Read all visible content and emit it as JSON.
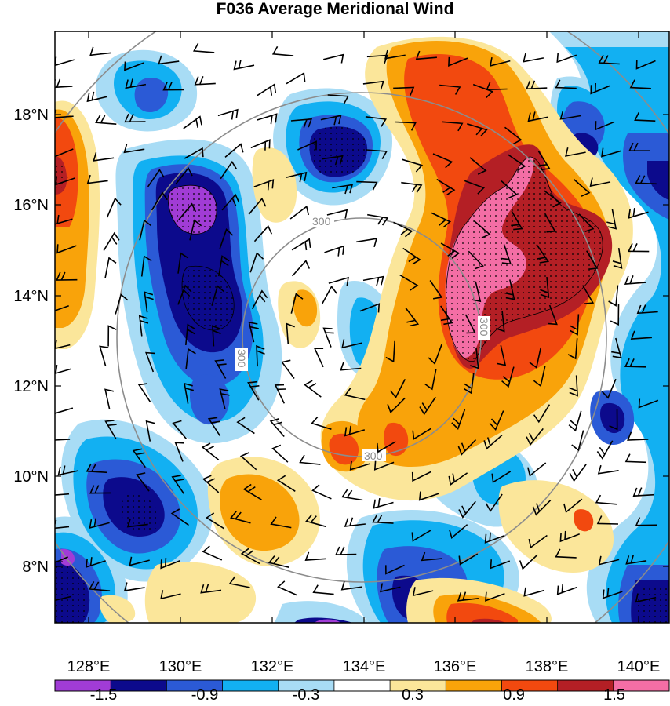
{
  "title": "F036 Average Meridional Wind",
  "axes": {
    "x_ticks": [
      "128°E",
      "130°E",
      "132°E",
      "134°E",
      "136°E",
      "138°E",
      "140°E"
    ],
    "y_ticks": [
      "18°N",
      "16°N",
      "14°N",
      "12°N",
      "10°N",
      "8°N"
    ]
  },
  "colorbar": {
    "colors": [
      "#a13cd6",
      "#0c0a8c",
      "#2b5ad6",
      "#12b0f2",
      "#a8dcf5",
      "#ffffff",
      "#fbe69a",
      "#f9a30a",
      "#f2490f",
      "#b41f25",
      "#f46ea5"
    ],
    "labels": [
      "-1.5",
      "-0.9",
      "-0.3",
      "0.3",
      "0.9",
      "1.5"
    ]
  },
  "range_rings": {
    "label": "300"
  }
}
